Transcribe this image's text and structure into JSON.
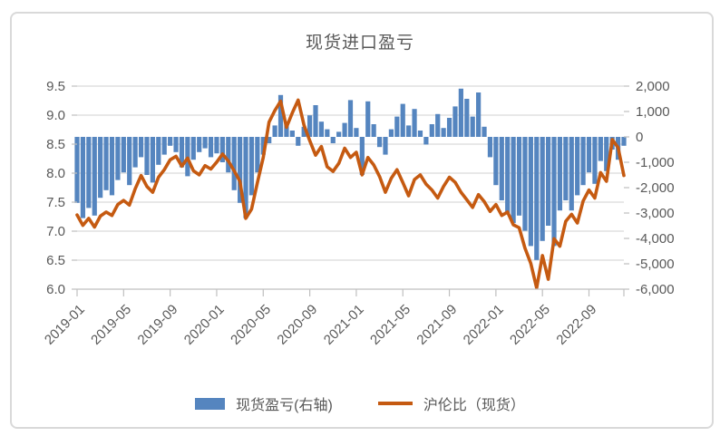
{
  "title": "现货进口盈亏",
  "colors": {
    "bar": "#5585BF",
    "line": "#C55A11",
    "grid": "#D9D9D9",
    "axis": "#BFBFBF",
    "text": "#595959"
  },
  "chart_data": {
    "type": "bar",
    "combo": "bar+line",
    "title": "现货进口盈亏",
    "x_unit": "months since 2019-01 (step 0.5)",
    "x_range_months": [
      0,
      47
    ],
    "x_tick_positions_months": [
      0,
      4,
      8,
      12,
      16,
      20,
      24,
      28,
      32,
      36,
      40,
      44
    ],
    "x_tick_labels": [
      "2019-01",
      "2019-05",
      "2019-09",
      "2020-01",
      "2020-05",
      "2020-09",
      "2021-01",
      "2021-05",
      "2021-09",
      "2022-01",
      "2022-05",
      "2022-09"
    ],
    "left_axis": {
      "min": 6.0,
      "max": 9.5,
      "tick_labels": [
        "9.5",
        "9.0",
        "8.5",
        "8.0",
        "7.5",
        "7.0",
        "6.5",
        "6.0"
      ],
      "tick_values": [
        9.5,
        9.0,
        8.5,
        8.0,
        7.5,
        7.0,
        6.5,
        6.0
      ]
    },
    "right_axis": {
      "min": -6000,
      "max": 2000,
      "tick_labels": [
        "2,000",
        "1,000",
        "0",
        "-1,000",
        "-2,000",
        "-3,000",
        "-4,000",
        "-5,000",
        "-6,000"
      ],
      "tick_values": [
        2000,
        1000,
        0,
        -1000,
        -2000,
        -3000,
        -4000,
        -5000,
        -6000
      ]
    },
    "grid": "horizontal",
    "legend_position": "bottom",
    "series": [
      {
        "name": "现货盈亏(右轴)",
        "type": "bar",
        "axis": "right",
        "color": "#5585BF",
        "values": [
          -2600,
          -3200,
          -2800,
          -3100,
          -2400,
          -2100,
          -2300,
          -1700,
          -1400,
          -1900,
          -1200,
          -800,
          -1500,
          -1800,
          -1100,
          -700,
          -350,
          -600,
          -1200,
          -1550,
          -900,
          -600,
          -450,
          -800,
          -650,
          -1000,
          -1400,
          -2100,
          -2600,
          -3200,
          -2300,
          -1400,
          -700,
          -250,
          450,
          1650,
          600,
          250,
          -350,
          400,
          850,
          1250,
          600,
          300,
          -250,
          200,
          550,
          1450,
          350,
          -1500,
          1400,
          500,
          -400,
          -700,
          300,
          800,
          1300,
          450,
          1100,
          250,
          -300,
          500,
          900,
          350,
          750,
          1200,
          1900,
          1500,
          800,
          1750,
          400,
          -800,
          -1900,
          -2500,
          -3000,
          -3400,
          -3100,
          -3700,
          -4300,
          -4850,
          -4100,
          -3500,
          -4300,
          -2900,
          -2500,
          -2900,
          -2300,
          -1900,
          -1400,
          -1850,
          -950,
          -1350,
          -500,
          -900,
          -350
        ]
      },
      {
        "name": "沪伦比（现货）",
        "type": "line",
        "axis": "left",
        "color": "#C55A11",
        "values": [
          7.28,
          7.1,
          7.22,
          7.07,
          7.26,
          7.33,
          7.27,
          7.46,
          7.53,
          7.45,
          7.73,
          7.96,
          7.77,
          7.67,
          7.93,
          8.06,
          8.23,
          8.29,
          8.12,
          8.26,
          8.04,
          7.97,
          8.13,
          8.07,
          8.19,
          8.33,
          8.21,
          8.04,
          7.86,
          7.22,
          7.38,
          7.84,
          8.27,
          8.88,
          9.08,
          9.24,
          8.79,
          9.04,
          9.26,
          8.83,
          8.56,
          8.31,
          8.46,
          8.11,
          8.03,
          8.17,
          8.43,
          8.27,
          8.36,
          7.97,
          8.27,
          8.14,
          7.94,
          7.67,
          7.91,
          8.06,
          7.84,
          7.61,
          7.89,
          7.97,
          7.81,
          7.71,
          7.57,
          7.77,
          7.93,
          7.84,
          7.67,
          7.54,
          7.41,
          7.63,
          7.51,
          7.34,
          7.46,
          7.27,
          7.33,
          7.11,
          7.06,
          6.71,
          6.44,
          6.02,
          6.58,
          6.17,
          6.87,
          6.74,
          7.17,
          7.29,
          7.14,
          7.52,
          7.71,
          7.57,
          8.01,
          7.86,
          8.58,
          8.44,
          7.96
        ]
      }
    ]
  }
}
